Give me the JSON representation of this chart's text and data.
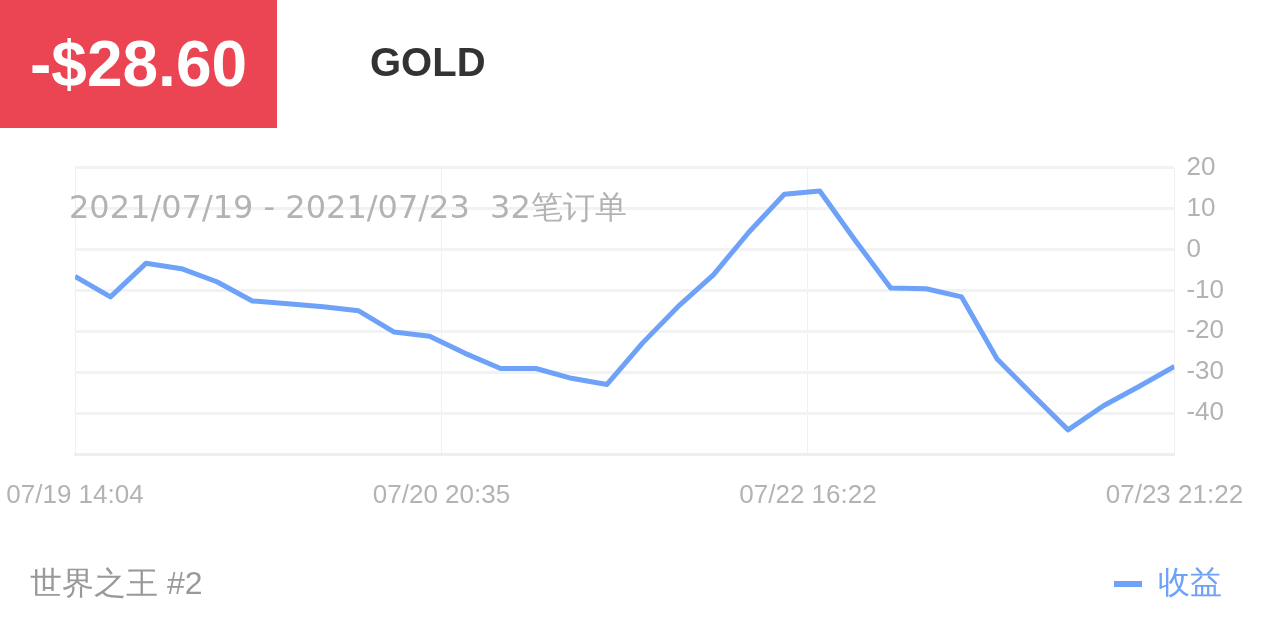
{
  "chart_data": {
    "type": "line",
    "title": "-$28.60",
    "subtitle": "GOLD",
    "annotations": [
      "2021/07/19 - 2021/07/23  32笔订单",
      "07/19 14:04",
      "07/20 20:35",
      "07/22 16:22",
      "07/23 21:22",
      "世界之王 #2"
    ],
    "categories": [
      null,
      null,
      null,
      null,
      null,
      null,
      null,
      null,
      null,
      null,
      null,
      null,
      null,
      null,
      null,
      null,
      null,
      null,
      null,
      null,
      null,
      null,
      null,
      null,
      null,
      null,
      null,
      null,
      null,
      null,
      null,
      null
    ],
    "series": [
      {
        "name": "收益",
        "color": "#6ea2f8",
        "values": [
          -6.6,
          -11.6,
          -3.4,
          -4.7,
          -7.9,
          -12.6,
          -13.3,
          -14,
          -15,
          -20.2,
          -21.2,
          -25.4,
          -29.1,
          -29.1,
          -31.5,
          -33,
          -22.9,
          -14,
          -6.2,
          4.2,
          13.5,
          14.3,
          2.2,
          -9.4,
          -9.6,
          -11.6,
          -26.8,
          -35.5,
          -44.1,
          -38.2,
          -33.5,
          -28.6
        ]
      }
    ],
    "ylim": [
      -50,
      20
    ],
    "yticks": [
      {
        "value": -50,
        "label": null
      },
      -40,
      -30,
      -20,
      -10,
      0,
      10,
      20
    ],
    "grid": true,
    "legend": "bottom right",
    "marker": "none",
    "line_style": "solid"
  }
}
